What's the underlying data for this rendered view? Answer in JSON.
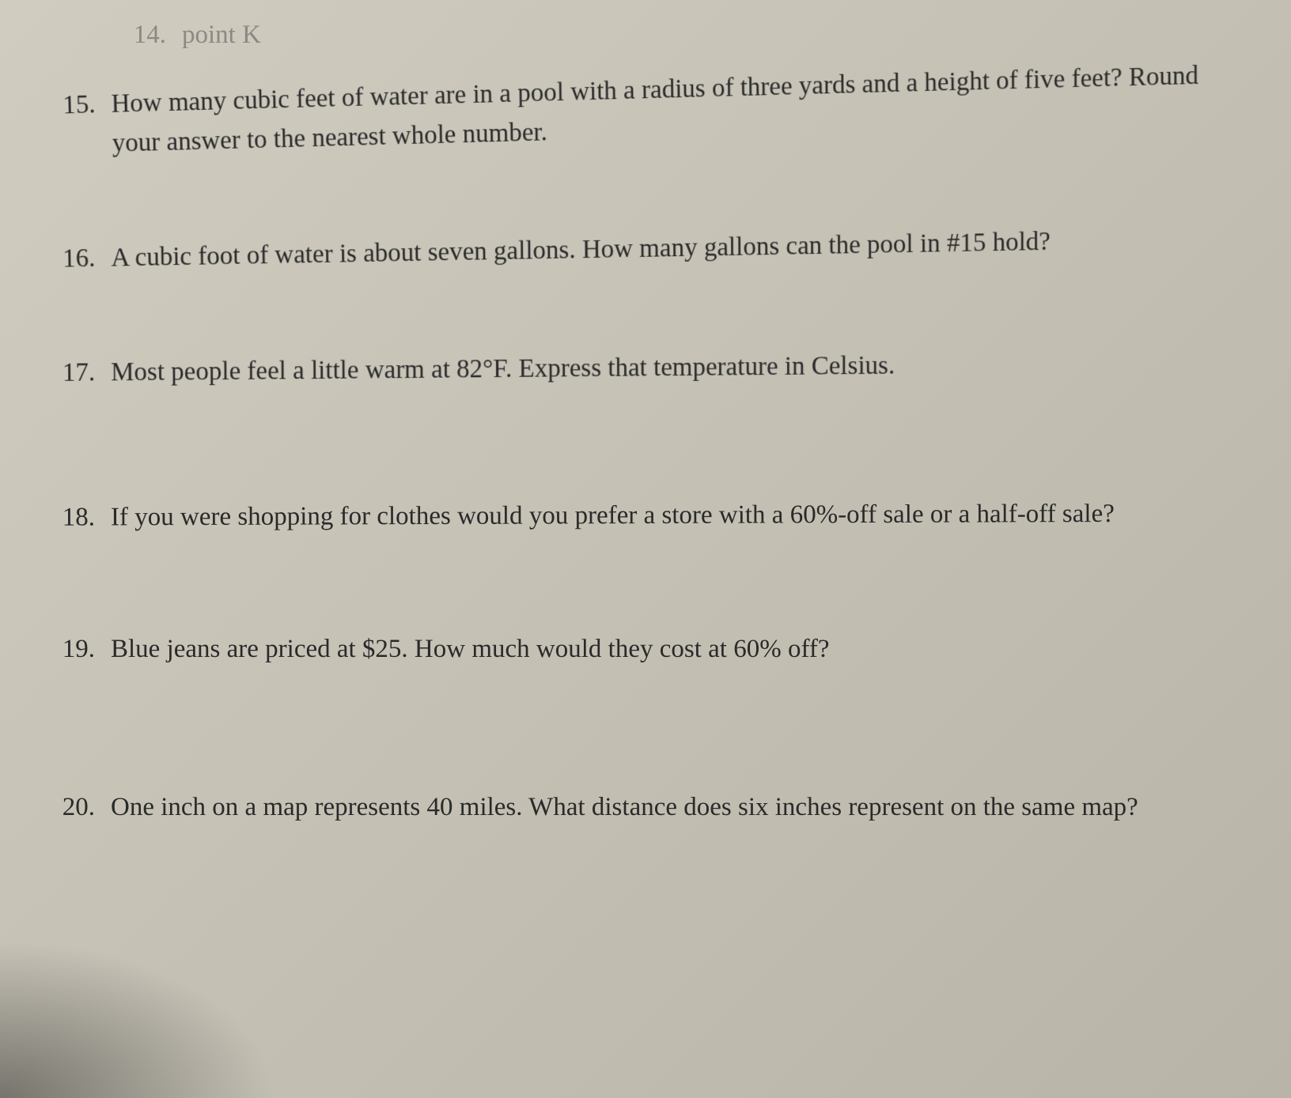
{
  "page": {
    "background_color": "#c8c4b8",
    "text_color": "#2a2a2a",
    "font_family": "Georgia, Times New Roman, serif",
    "font_size_pt": 33,
    "line_height": 1.5
  },
  "questions": [
    {
      "number": "14.",
      "text": "point K"
    },
    {
      "number": "15.",
      "text": "How many cubic feet of water are in a pool with a radius of three yards and a height of five feet? Round your answer to the nearest whole number."
    },
    {
      "number": "16.",
      "text": "A cubic foot of water is about seven gallons. How many gallons can the pool in #15 hold?"
    },
    {
      "number": "17.",
      "text": "Most people feel a little warm at 82°F. Express that temperature in Celsius."
    },
    {
      "number": "18.",
      "text": "If you were shopping for clothes would you prefer a store with a 60%-off sale or a half-off sale?"
    },
    {
      "number": "19.",
      "text": "Blue jeans are priced at $25. How much would they cost at 60% off?"
    },
    {
      "number": "20.",
      "text": "One inch on a map represents 40 miles. What distance does six inches represent on the same map?"
    }
  ]
}
